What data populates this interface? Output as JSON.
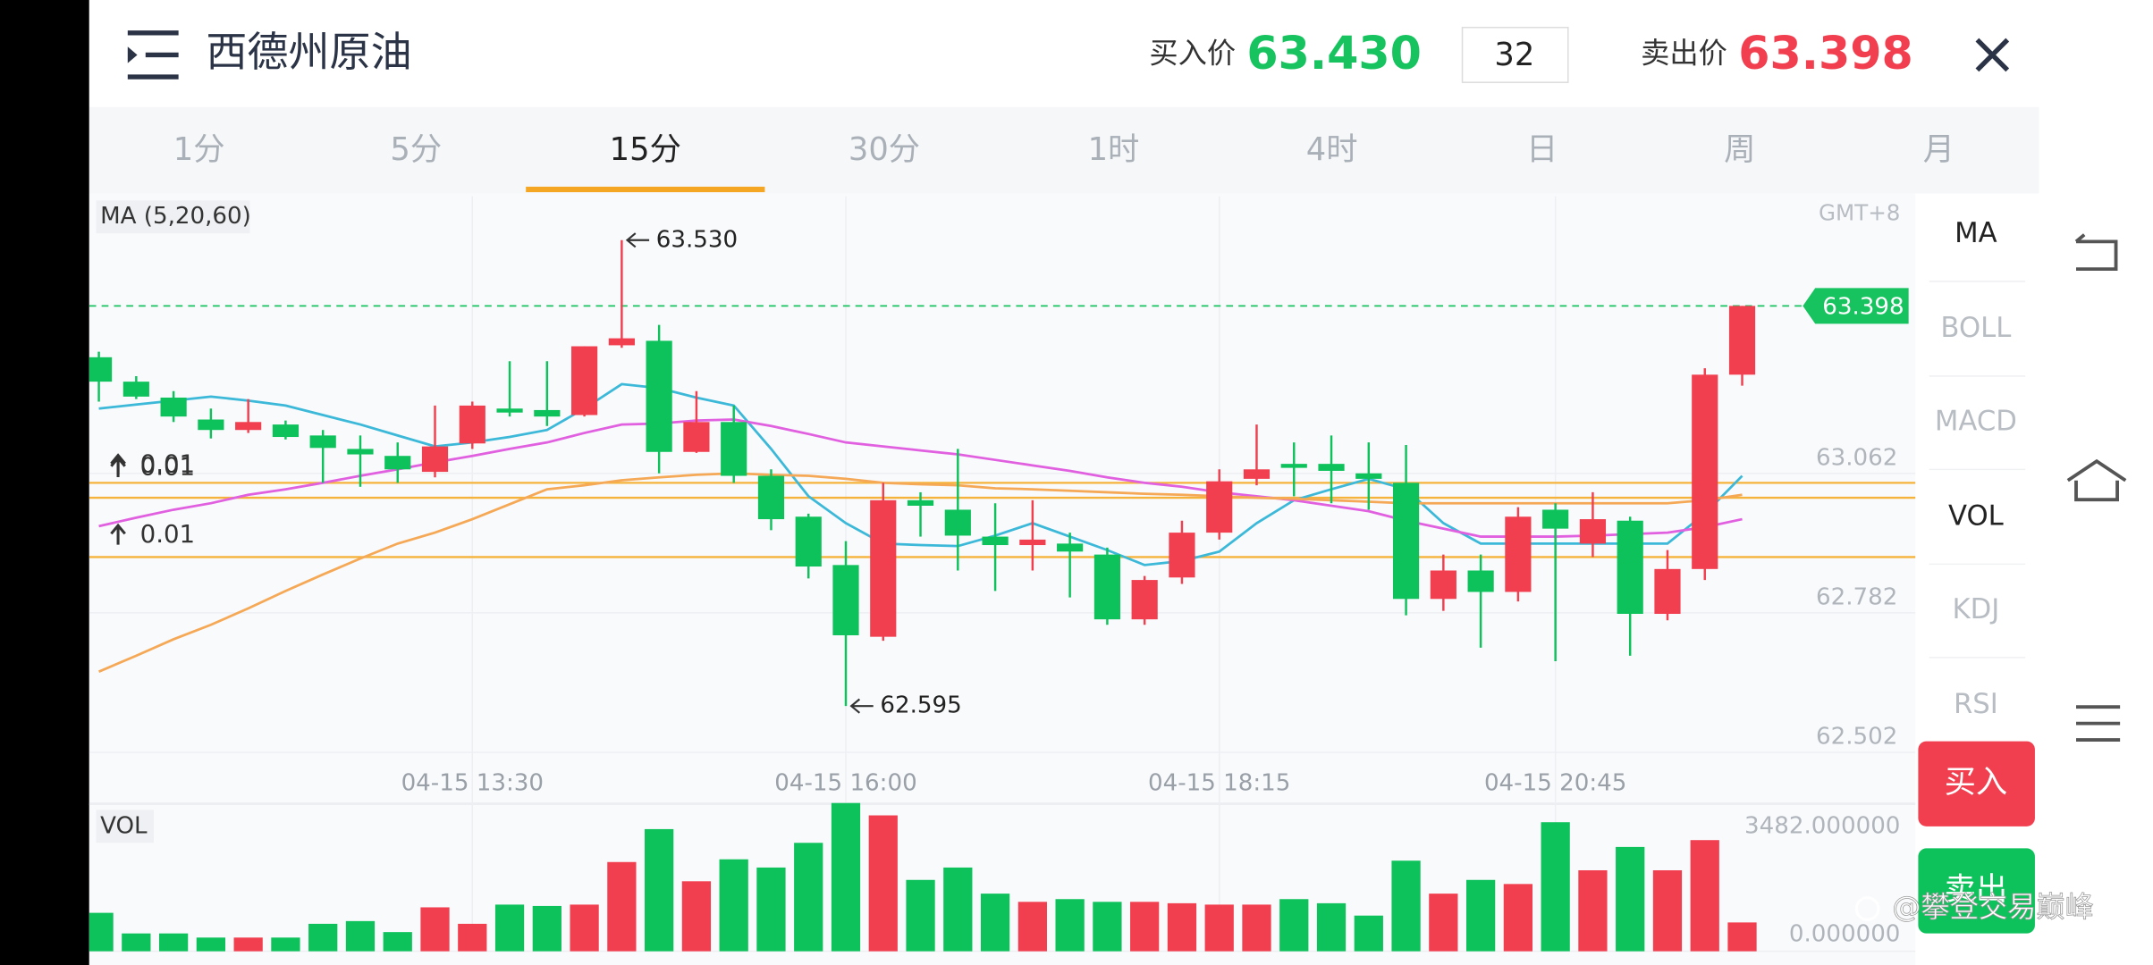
{
  "header": {
    "title": "西德州原油",
    "bid_label": "买入价",
    "bid": "63.430",
    "spread": "32",
    "ask_label": "卖出价",
    "ask": "63.398"
  },
  "tabs": [
    "1分",
    "5分",
    "15分",
    "30分",
    "1时",
    "4时",
    "日",
    "周",
    "月"
  ],
  "active_tab": 2,
  "indicators": [
    "MA",
    "BOLL",
    "MACD",
    "VOL",
    "KDJ",
    "RSI"
  ],
  "active_indicators": [
    0,
    3
  ],
  "buttons": {
    "buy": "买入",
    "sell": "卖出"
  },
  "watermark": "@攀登交易巅峰",
  "chart_data": [
    {
      "type": "candlestick",
      "legend_label": "MA (5,20,60)",
      "timezone": "GMT+8",
      "up_color": "#f23f4f",
      "down_color": "#0ec25b",
      "categories": [
        null,
        null,
        null,
        null,
        null,
        null,
        null,
        null,
        null,
        null,
        "04-15 13:30",
        null,
        null,
        null,
        null,
        null,
        null,
        null,
        null,
        null,
        "04-15 16:00",
        null,
        null,
        null,
        null,
        null,
        null,
        null,
        null,
        null,
        "04-15 18:15",
        null,
        null,
        null,
        null,
        null,
        null,
        null,
        null,
        "04-15 20:45",
        null,
        null,
        null,
        null,
        null
      ],
      "open": [
        63.295,
        63.246,
        63.214,
        63.17,
        63.149,
        63.16,
        63.138,
        63.111,
        63.097,
        63.065,
        63.122,
        63.192,
        63.189,
        63.179,
        63.319,
        63.328,
        63.105,
        63.165,
        63.057,
        62.975,
        62.878,
        62.734,
        63.008,
        62.989,
        62.935,
        62.918,
        62.921,
        62.899,
        62.769,
        62.853,
        62.943,
        63.051,
        63.081,
        63.081,
        63.062,
        63.043,
        62.81,
        62.867,
        62.824,
        62.989,
        62.921,
        62.967,
        62.78,
        62.87,
        63.26
      ],
      "high": [
        63.306,
        63.257,
        63.227,
        63.192,
        63.211,
        63.168,
        63.149,
        63.138,
        63.124,
        63.198,
        63.206,
        63.287,
        63.287,
        63.317,
        63.53,
        63.36,
        63.227,
        63.198,
        63.07,
        62.981,
        62.926,
        63.043,
        63.024,
        63.111,
        63.002,
        63.008,
        62.943,
        62.913,
        62.856,
        62.967,
        63.07,
        63.16,
        63.124,
        63.138,
        63.124,
        63.119,
        62.899,
        62.899,
        62.994,
        63.002,
        63.024,
        62.975,
        62.908,
        63.273,
        63.398
      ],
      "low": [
        63.206,
        63.211,
        63.165,
        63.132,
        63.143,
        63.13,
        63.043,
        63.035,
        63.043,
        63.054,
        63.111,
        63.176,
        63.157,
        63.176,
        63.314,
        63.062,
        63.103,
        63.043,
        62.948,
        62.851,
        62.595,
        62.726,
        62.935,
        62.867,
        62.826,
        62.867,
        62.813,
        62.758,
        62.758,
        62.84,
        62.929,
        63.038,
        63.016,
        63.002,
        62.989,
        62.777,
        62.786,
        62.712,
        62.805,
        62.685,
        62.894,
        62.696,
        62.767,
        62.848,
        63.238
      ],
      "close": [
        63.246,
        63.216,
        63.176,
        63.149,
        63.165,
        63.135,
        63.113,
        63.1,
        63.07,
        63.116,
        63.198,
        63.184,
        63.176,
        63.317,
        63.333,
        63.105,
        63.165,
        63.057,
        62.97,
        62.875,
        62.737,
        63.008,
        62.997,
        62.937,
        62.918,
        62.929,
        62.905,
        62.769,
        62.848,
        62.943,
        63.046,
        63.07,
        63.073,
        63.067,
        63.051,
        62.81,
        62.867,
        62.824,
        62.975,
        62.951,
        62.97,
        62.78,
        62.87,
        63.26,
        63.398
      ],
      "series": [
        {
          "color": "#3cb8d8",
          "values": [
            63.192,
            63.2,
            63.208,
            63.216,
            63.208,
            63.198,
            63.179,
            63.16,
            63.138,
            63.116,
            63.124,
            63.135,
            63.149,
            63.192,
            63.241,
            63.233,
            63.214,
            63.198,
            63.111,
            63.016,
            62.962,
            62.921,
            62.918,
            62.916,
            62.937,
            62.962,
            62.935,
            62.908,
            62.878,
            62.886,
            62.905,
            62.962,
            63.008,
            63.03,
            63.051,
            63.03,
            62.962,
            62.921,
            62.921,
            62.921,
            62.921,
            62.921,
            62.921,
            62.981,
            63.057
          ]
        },
        {
          "color": "#e060e0",
          "values": [
            62.956,
            62.973,
            62.989,
            63.002,
            63.019,
            63.03,
            63.043,
            63.057,
            63.07,
            63.084,
            63.097,
            63.111,
            63.124,
            63.143,
            63.16,
            63.162,
            63.168,
            63.17,
            63.157,
            63.141,
            63.124,
            63.116,
            63.108,
            63.1,
            63.089,
            63.078,
            63.067,
            63.054,
            63.043,
            63.035,
            63.024,
            63.016,
            63.008,
            62.997,
            62.986,
            62.967,
            62.951,
            62.935,
            62.935,
            62.935,
            62.937,
            62.94,
            62.943,
            62.954,
            62.97
          ]
        },
        {
          "color": "#f5a956",
          "values": [
            62.664,
            62.696,
            62.729,
            62.758,
            62.791,
            62.826,
            62.859,
            62.891,
            62.921,
            62.943,
            62.97,
            63.0,
            63.03,
            63.038,
            63.048,
            63.054,
            63.059,
            63.062,
            63.059,
            63.057,
            63.051,
            63.043,
            63.04,
            63.038,
            63.032,
            63.03,
            63.027,
            63.024,
            63.021,
            63.019,
            63.016,
            63.013,
            63.011,
            63.008,
            63.005,
            63.002,
            63.002,
            63.002,
            63.002,
            63.002,
            63.002,
            63.002,
            63.002,
            63.008,
            63.019
          ]
        }
      ],
      "ylim": [
        62.483,
        63.618
      ],
      "yticks": [
        62.502,
        62.782,
        63.062
      ],
      "grid": true,
      "current_price": 63.398,
      "current_price_color": "#16c35f",
      "annotations": [
        {
          "value": 63.53,
          "label": "63.530"
        },
        {
          "value": 62.595,
          "label": "62.595"
        }
      ],
      "orders": [
        {
          "price": 63.043,
          "lots": 0.01
        },
        {
          "price": 63.013,
          "lots": 0.01
        },
        {
          "price": 62.894,
          "lots": 0.01
        }
      ],
      "order_color": "#f5b33c"
    },
    {
      "type": "bar",
      "title": "VOL",
      "values": [
        903,
        419,
        419,
        322,
        322,
        322,
        645,
        709,
        451,
        1032,
        645,
        1096,
        1064,
        1096,
        2096,
        2869,
        1644,
        2160,
        1967,
        2547,
        3482,
        3192,
        1676,
        1967,
        1354,
        1161,
        1225,
        1161,
        1161,
        1128,
        1096,
        1096,
        1225,
        1128,
        838,
        2128,
        1354,
        1676,
        1580,
        3031,
        1902,
        2450,
        1902,
        2611,
        677
      ],
      "ylim": [
        0,
        3482
      ],
      "yticks": [
        {
          "value": 0,
          "label": "0.000000"
        },
        {
          "value": 3482,
          "label": "3482.000000"
        }
      ]
    }
  ]
}
